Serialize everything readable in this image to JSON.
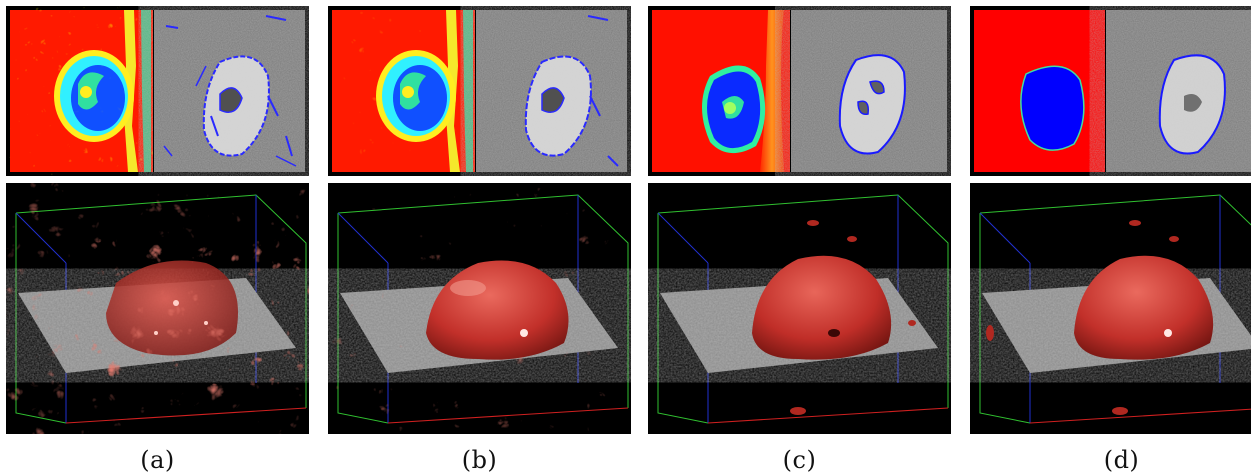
{
  "figure": {
    "panels": [
      {
        "id": "a",
        "caption": "(a)",
        "level_set": "noisy",
        "surface": "fragmented"
      },
      {
        "id": "b",
        "caption": "(b)",
        "level_set": "noisy",
        "surface": "partially-fragmented"
      },
      {
        "id": "c",
        "caption": "(c)",
        "level_set": "smooth",
        "surface": "smooth-with-hole"
      },
      {
        "id": "d",
        "caption": "(d)",
        "level_set": "flat",
        "surface": "smooth"
      }
    ],
    "colors": {
      "background_field": "#ff0000",
      "inner_region": "#0000ff",
      "contour": "#1a1aff",
      "surface": "#c4302a",
      "slice_gray": "#7c7c7c",
      "box_red": "#d02020",
      "box_green": "#30c030",
      "box_blue": "#2030d0"
    }
  }
}
